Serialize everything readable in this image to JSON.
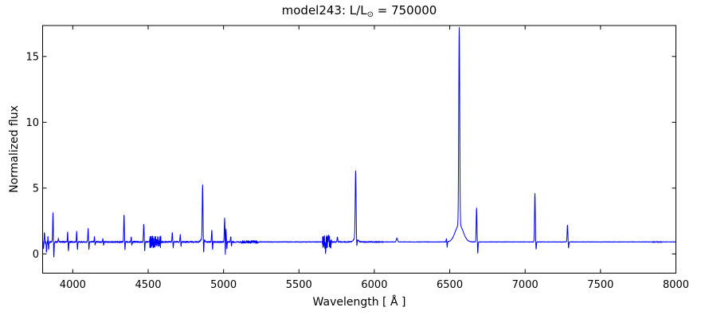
{
  "figure": {
    "title_parts": {
      "prefix": "model243: L/L",
      "solar_symbol": "⊙",
      "suffix": " = 750000"
    }
  },
  "chart_data": {
    "type": "line",
    "title": "model243: L/L⊙ = 750000",
    "xlabel": "Wavelength [ Å ]",
    "ylabel": "Normalized flux",
    "xlim": [
      3800,
      8000
    ],
    "ylim": [
      -1.46,
      17.35
    ],
    "x_ticks": [
      4000,
      4500,
      5000,
      5500,
      6000,
      6500,
      7000,
      7500,
      8000
    ],
    "y_ticks": [
      0,
      5,
      10,
      15
    ],
    "grid": false,
    "legend": "none",
    "line_color": "#0000ff",
    "frame_color": "#000000",
    "continuum_flux": 0.91,
    "emission_lines": [
      {
        "wl": 3812,
        "peak": 1.5,
        "sigma": 1.8
      },
      {
        "wl": 3835,
        "peak": 1.35,
        "sigma": 1.8
      },
      {
        "wl": 3869,
        "peak": 3.2,
        "sigma": 2.2
      },
      {
        "wl": 3905,
        "peak": 1.2,
        "sigma": 1.8
      },
      {
        "wl": 3966,
        "peak": 1.65,
        "sigma": 1.8
      },
      {
        "wl": 4026,
        "peak": 1.75,
        "sigma": 1.8
      },
      {
        "wl": 4102,
        "peak": 1.95,
        "sigma": 2.2
      },
      {
        "wl": 4144,
        "peak": 1.35,
        "sigma": 1.8
      },
      {
        "wl": 4200,
        "peak": 1.2,
        "sigma": 1.8
      },
      {
        "wl": 4340,
        "peak": 3.0,
        "sigma": 2.2
      },
      {
        "wl": 4388,
        "peak": 1.3,
        "sigma": 1.8
      },
      {
        "wl": 4471,
        "peak": 2.3,
        "sigma": 2.2
      },
      {
        "wl": 4660,
        "peak": 1.6,
        "sigma": 2.0
      },
      {
        "wl": 4713,
        "peak": 1.45,
        "sigma": 2.0
      },
      {
        "wl": 4861,
        "peak": 5.0,
        "sigma": 2.4,
        "wing_sigma": 10,
        "wing_amp": 0.3
      },
      {
        "wl": 4922,
        "peak": 1.85,
        "sigma": 2.0
      },
      {
        "wl": 5007,
        "peak": 2.7,
        "sigma": 2.2
      },
      {
        "wl": 5016,
        "peak": 1.9,
        "sigma": 2.0
      },
      {
        "wl": 5048,
        "peak": 1.35,
        "sigma": 2.0
      },
      {
        "wl": 5698,
        "peak": 1.45,
        "sigma": 2.0
      },
      {
        "wl": 5755,
        "peak": 1.3,
        "sigma": 2.0
      },
      {
        "wl": 5876,
        "peak": 6.0,
        "sigma": 2.8,
        "wing_sigma": 12,
        "wing_amp": 0.35
      },
      {
        "wl": 6150,
        "peak": 1.2,
        "sigma": 4.0
      },
      {
        "wl": 6478,
        "peak": 1.15,
        "sigma": 1.8
      },
      {
        "wl": 6563,
        "peak": 15.9,
        "sigma": 3.2,
        "wing_sigma": 26,
        "wing_amp": 1.3
      },
      {
        "wl": 6678,
        "peak": 3.5,
        "sigma": 2.4
      },
      {
        "wl": 7065,
        "peak": 4.6,
        "sigma": 2.4
      },
      {
        "wl": 7281,
        "peak": 2.2,
        "sigma": 2.4
      }
    ],
    "absorption_lines": [
      {
        "wl": 3806,
        "min": 0.4,
        "sigma": 1.8
      },
      {
        "wl": 3826,
        "min": 0.25,
        "sigma": 1.8
      },
      {
        "wl": 3840,
        "min": 0.35,
        "sigma": 1.8
      },
      {
        "wl": 3874,
        "min": -0.45,
        "sigma": 2.0
      },
      {
        "wl": 3971,
        "min": 0.2,
        "sigma": 1.8
      },
      {
        "wl": 4031,
        "min": 0.3,
        "sigma": 1.8
      },
      {
        "wl": 4107,
        "min": 0.25,
        "sigma": 1.8
      },
      {
        "wl": 4148,
        "min": 0.6,
        "sigma": 1.6
      },
      {
        "wl": 4204,
        "min": 0.65,
        "sigma": 1.6
      },
      {
        "wl": 4346,
        "min": 0.3,
        "sigma": 1.8
      },
      {
        "wl": 4392,
        "min": 0.6,
        "sigma": 1.6
      },
      {
        "wl": 4477,
        "min": 0.25,
        "sigma": 1.8
      },
      {
        "wl": 4666,
        "min": 0.5,
        "sigma": 1.6
      },
      {
        "wl": 4718,
        "min": 0.55,
        "sigma": 1.6
      },
      {
        "wl": 4868,
        "min": -0.15,
        "sigma": 1.8
      },
      {
        "wl": 4927,
        "min": 0.3,
        "sigma": 1.6
      },
      {
        "wl": 5012,
        "min": -0.3,
        "sigma": 1.5
      },
      {
        "wl": 5022,
        "min": 0.35,
        "sigma": 1.5
      },
      {
        "wl": 5052,
        "min": 0.55,
        "sigma": 1.6
      },
      {
        "wl": 5676,
        "min": 0.15,
        "sigma": 1.8
      },
      {
        "wl": 5884,
        "min": 0.3,
        "sigma": 2.0
      },
      {
        "wl": 6483,
        "min": 0.5,
        "sigma": 1.6
      },
      {
        "wl": 6686,
        "min": 0.05,
        "sigma": 1.8
      },
      {
        "wl": 7073,
        "min": 0.35,
        "sigma": 1.8
      },
      {
        "wl": 7288,
        "min": 0.45,
        "sigma": 1.8
      }
    ],
    "noise_regions": [
      {
        "from": 3800,
        "to": 3835,
        "amp": 0.22
      },
      {
        "from": 3835,
        "to": 4505,
        "amp": 0.05
      },
      {
        "from": 4510,
        "to": 4585,
        "amp": 0.45
      },
      {
        "from": 4585,
        "to": 5120,
        "amp": 0.05
      },
      {
        "from": 5120,
        "to": 5230,
        "amp": 0.1
      },
      {
        "from": 5230,
        "to": 5645,
        "amp": 0.025
      },
      {
        "from": 5655,
        "to": 5715,
        "amp": 0.5
      },
      {
        "from": 5715,
        "to": 6060,
        "amp": 0.04
      },
      {
        "from": 6060,
        "to": 7840,
        "amp": 0.015
      },
      {
        "from": 7840,
        "to": 7905,
        "amp": 0.04
      },
      {
        "from": 7905,
        "to": 8000,
        "amp": 0.012
      }
    ]
  }
}
